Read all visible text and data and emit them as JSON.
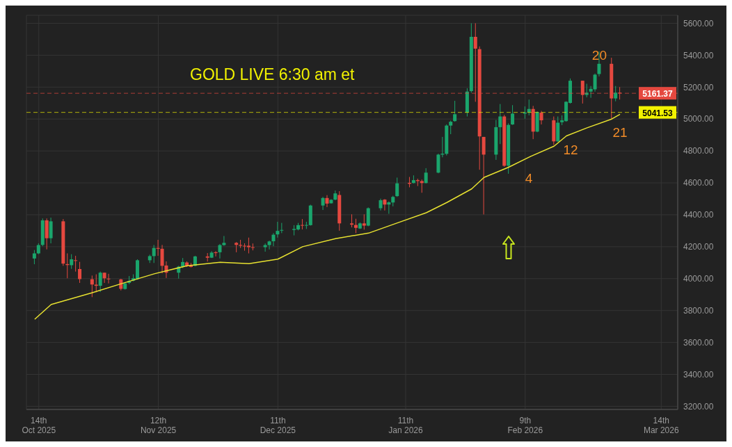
{
  "chart_data": {
    "type": "candlestick",
    "title": "GOLD LIVE 6:30 am et",
    "x": [
      "2025-10-13",
      "2025-10-14",
      "2025-10-15",
      "2025-10-16",
      "2025-10-17",
      "2025-10-20",
      "2025-10-21",
      "2025-10-22",
      "2025-10-23",
      "2025-10-24",
      "2025-10-27",
      "2025-10-28",
      "2025-10-29",
      "2025-10-30",
      "2025-10-31",
      "2025-11-03",
      "2025-11-04",
      "2025-11-05",
      "2025-11-06",
      "2025-11-07",
      "2025-11-10",
      "2025-11-11",
      "2025-11-12",
      "2025-11-13",
      "2025-11-14",
      "2025-11-17",
      "2025-11-18",
      "2025-11-19",
      "2025-11-20",
      "2025-11-21",
      "2025-11-24",
      "2025-11-25",
      "2025-11-26",
      "2025-11-27",
      "2025-11-28",
      "2025-12-01",
      "2025-12-02",
      "2025-12-03",
      "2025-12-04",
      "2025-12-05",
      "2025-12-08",
      "2025-12-09",
      "2025-12-10",
      "2025-12-11",
      "2025-12-12",
      "2025-12-15",
      "2025-12-16",
      "2025-12-17",
      "2025-12-18",
      "2025-12-19",
      "2025-12-22",
      "2025-12-23",
      "2025-12-24",
      "2025-12-25",
      "2025-12-26",
      "2025-12-29",
      "2025-12-30",
      "2025-12-31",
      "2026-01-01",
      "2026-01-02",
      "2026-01-05",
      "2026-01-06",
      "2026-01-07",
      "2026-01-08",
      "2026-01-09",
      "2026-01-12",
      "2026-01-13",
      "2026-01-14",
      "2026-01-15",
      "2026-01-16",
      "2026-01-19",
      "2026-01-20",
      "2026-01-21",
      "2026-01-22",
      "2026-01-23",
      "2026-01-26",
      "2026-01-27",
      "2026-01-28",
      "2026-01-29",
      "2026-01-30",
      "2026-02-02",
      "2026-02-03",
      "2026-02-04",
      "2026-02-05",
      "2026-02-06",
      "2026-02-09",
      "2026-02-10",
      "2026-02-11",
      "2026-02-12",
      "2026-02-13",
      "2026-02-16",
      "2026-02-17",
      "2026-02-18",
      "2026-02-19",
      "2026-02-20",
      "2026-02-23",
      "2026-02-24",
      "2026-02-25",
      "2026-02-26",
      "2026-02-27",
      "2026-03-02",
      "2026-03-03",
      "2026-03-04"
    ],
    "ohlc": [
      [
        4126,
        4179,
        4090,
        4158
      ],
      [
        4158,
        4221,
        4153,
        4210
      ],
      [
        4211,
        4377,
        4203,
        4365
      ],
      [
        4365,
        4377,
        4183,
        4253
      ],
      [
        4253,
        4382,
        4221,
        4359
      ],
      [
        4359,
        4373,
        4080,
        4094
      ],
      [
        4091,
        4158,
        4002,
        4085
      ],
      [
        4084,
        4153,
        4061,
        4121
      ],
      [
        4115,
        4143,
        4044,
        4111
      ],
      [
        4060,
        4105,
        3973,
        3997
      ],
      [
        3996,
        4019,
        3884,
        3963
      ],
      [
        3962,
        4027,
        3914,
        3955
      ],
      [
        3955,
        4044,
        3916,
        4037
      ],
      [
        4037,
        4037,
        3973,
        4002
      ],
      [
        4000,
        4030,
        3970,
        3996
      ],
      [
        3995,
        3999,
        3926,
        3936
      ],
      [
        3935,
        3973,
        3931,
        3970
      ],
      [
        3973,
        4016,
        3965,
        3985
      ],
      [
        3987,
        4027,
        3983,
        4002
      ],
      [
        3997,
        4121,
        3993,
        4115
      ],
      [
        4115,
        4150,
        4098,
        4141
      ],
      [
        4141,
        4211,
        4098,
        4192
      ],
      [
        4192,
        4243,
        4143,
        4187
      ],
      [
        4187,
        4211,
        4033,
        4080
      ],
      [
        4082,
        4108,
        4004,
        4037
      ],
      [
        4037,
        4080,
        4000,
        4075
      ],
      [
        4075,
        4129,
        4066,
        4104
      ],
      [
        4101,
        4108,
        4073,
        4080
      ],
      [
        4082,
        4098,
        4070,
        4073
      ],
      [
        4080,
        4143,
        4077,
        4139
      ],
      [
        4139,
        4160,
        4107,
        4131
      ],
      [
        4131,
        4172,
        4129,
        4163
      ],
      [
        4165,
        4172,
        4139,
        4160
      ],
      [
        4165,
        4217,
        4126,
        4210
      ],
      [
        4210,
        4267,
        4206,
        4224
      ],
      [
        4224,
        4229,
        4165,
        4211
      ],
      [
        4211,
        4243,
        4192,
        4206
      ],
      [
        4206,
        4221,
        4175,
        4202
      ],
      [
        4206,
        4257,
        4158,
        4197
      ],
      [
        4197,
        4220,
        4177,
        4193
      ],
      [
        4197,
        4220,
        4169,
        4210
      ],
      [
        4210,
        4238,
        4183,
        4233
      ],
      [
        4234,
        4285,
        4203,
        4275
      ],
      [
        4277,
        4356,
        4257,
        4299
      ],
      [
        4301,
        4349,
        4285,
        4305
      ],
      [
        4305,
        4335,
        4271,
        4311
      ],
      [
        4308,
        4349,
        4302,
        4335
      ],
      [
        4336,
        4373,
        4308,
        4332
      ],
      [
        4332,
        4356,
        4311,
        4336
      ],
      [
        4335,
        4463,
        4332,
        4458
      ],
      [
        4458,
        4512,
        4430,
        4505
      ],
      [
        4505,
        4523,
        4448,
        4470
      ],
      [
        4472,
        4498,
        4470,
        4494
      ],
      [
        4495,
        4552,
        4491,
        4534
      ],
      [
        4524,
        4548,
        4300,
        4346
      ],
      [
        4346,
        4403,
        4321,
        4338
      ],
      [
        4336,
        4375,
        4285,
        4318
      ],
      [
        4314,
        4352,
        4311,
        4346
      ],
      [
        4346,
        4403,
        4307,
        4332
      ],
      [
        4332,
        4446,
        4328,
        4441
      ],
      [
        4441,
        4501,
        4427,
        4491
      ],
      [
        4495,
        4498,
        4427,
        4464
      ],
      [
        4464,
        4484,
        4406,
        4478
      ],
      [
        4477,
        4519,
        4453,
        4512
      ],
      [
        4517,
        4633,
        4512,
        4597
      ],
      [
        4600,
        4637,
        4572,
        4594
      ],
      [
        4599,
        4647,
        4596,
        4617
      ],
      [
        4617,
        4626,
        4580,
        4611
      ],
      [
        4611,
        4621,
        4538,
        4599
      ],
      [
        4599,
        4692,
        4596,
        4664
      ],
      [
        4664,
        4783,
        4660,
        4777
      ],
      [
        4777,
        4888,
        4760,
        4783
      ],
      [
        4782,
        4966,
        4772,
        4959
      ],
      [
        4959,
        4990,
        4905,
        4983
      ],
      [
        4987,
        5114,
        4983,
        5030
      ],
      [
        5041,
        5193,
        5016,
        5172
      ],
      [
        5175,
        5600,
        5165,
        5515
      ],
      [
        5515,
        5600,
        5108,
        5441
      ],
      [
        5438,
        5455,
        4682,
        4891
      ],
      [
        4888,
        4888,
        4402,
        4777
      ],
      [
        4777,
        4994,
        4744,
        4949
      ],
      [
        4949,
        5094,
        4843,
        5016
      ],
      [
        5016,
        5026,
        4701,
        4707
      ],
      [
        4707,
        4973,
        4657,
        4963
      ],
      [
        4966,
        5087,
        4963,
        5034
      ],
      [
        5034,
        5079,
        5002,
        5041
      ],
      [
        5041,
        5122,
        5023,
        5063
      ],
      [
        5063,
        5082,
        4874,
        4921
      ],
      [
        4921,
        5048,
        4917,
        5044
      ],
      [
        5040,
        5051,
        4966,
        4992
      ],
      [
        4992,
        5016,
        4838,
        4860
      ],
      [
        4860,
        5016,
        4857,
        4977
      ],
      [
        4980,
        5023,
        4962,
        4992
      ],
      [
        4987,
        5111,
        4983,
        5108
      ],
      [
        5101,
        5254,
        5097,
        5240
      ],
      [
        5240,
        5240,
        5097,
        5151
      ],
      [
        5151,
        5221,
        5136,
        5165
      ],
      [
        5172,
        5207,
        5133,
        5189
      ],
      [
        5186,
        5285,
        5172,
        5278
      ],
      [
        5282,
        5423,
        5267,
        5346
      ],
      [
        5346,
        5384,
        5002,
        5129
      ],
      [
        5129,
        5207,
        5111,
        5165
      ],
      [
        5165,
        5200,
        5122,
        5161
      ]
    ],
    "series": [
      {
        "type": "line",
        "color": "#e8e230",
        "x": [
          "2025-10-13",
          "2025-10-17",
          "2025-10-27",
          "2025-11-03",
          "2025-11-11",
          "2025-11-19",
          "2025-11-27",
          "2025-12-04",
          "2025-12-11",
          "2025-12-17",
          "2025-12-25",
          "2026-01-02",
          "2026-01-09",
          "2026-01-16",
          "2026-01-21",
          "2026-01-27",
          "2026-01-30",
          "2026-02-05",
          "2026-02-10",
          "2026-02-16",
          "2026-02-19",
          "2026-02-24",
          "2026-03-02",
          "2026-03-04"
        ],
        "values": [
          3745,
          3838,
          3912,
          3968,
          4030,
          4081,
          4102,
          4094,
          4122,
          4200,
          4251,
          4285,
          4349,
          4413,
          4477,
          4562,
          4634,
          4698,
          4762,
          4830,
          4894,
          4945,
          5000,
          5030
        ]
      }
    ],
    "xlim": [
      "2025-10-11",
      "2026-03-18"
    ],
    "xticks": [
      {
        "value": "2025-10-14",
        "label": "14th Oct 2025"
      },
      {
        "value": "2025-11-12",
        "label": "12th Nov 2025"
      },
      {
        "value": "2025-12-11",
        "label": "11th Dec 2025"
      },
      {
        "value": "2026-01-11",
        "label": "11th Jan 2026"
      },
      {
        "value": "2026-02-09",
        "label": "9th Feb 2026"
      },
      {
        "value": "2026-03-14",
        "label": "14th Mar 2026"
      }
    ],
    "ylim": [
      3180,
      5650
    ],
    "yticks": [
      {
        "value": 3200,
        "label": "3200.00"
      },
      {
        "value": 3400,
        "label": "3400.00"
      },
      {
        "value": 3600,
        "label": "3600.00"
      },
      {
        "value": 3800,
        "label": "3800.00"
      },
      {
        "value": 4000,
        "label": "4000.00"
      },
      {
        "value": 4200,
        "label": "4200.00"
      },
      {
        "value": 4400,
        "label": "4400.00"
      },
      {
        "value": 4600,
        "label": "4600.00"
      },
      {
        "value": 4800,
        "label": "4800.00"
      },
      {
        "value": 5000,
        "label": "5000.00"
      },
      {
        "value": 5200,
        "label": "5200.00"
      },
      {
        "value": 5400,
        "label": "5400.00"
      },
      {
        "value": 5600,
        "label": "5600.00"
      }
    ],
    "ref_lines": [
      {
        "axis": "y",
        "value": 5161.37,
        "label": "5161.37",
        "color": "#e5483f",
        "line_style": "dashed"
      },
      {
        "axis": "y",
        "value": 5041.53,
        "label": "5041.53",
        "color": "#f2f200",
        "line_style": "dashed"
      }
    ],
    "annotations": [
      {
        "text": "20",
        "x": "2026-02-27",
        "y": 5400
      },
      "21",
      "12",
      "4"
    ],
    "grid": true,
    "marker": "none",
    "line_style": "solid"
  }
}
